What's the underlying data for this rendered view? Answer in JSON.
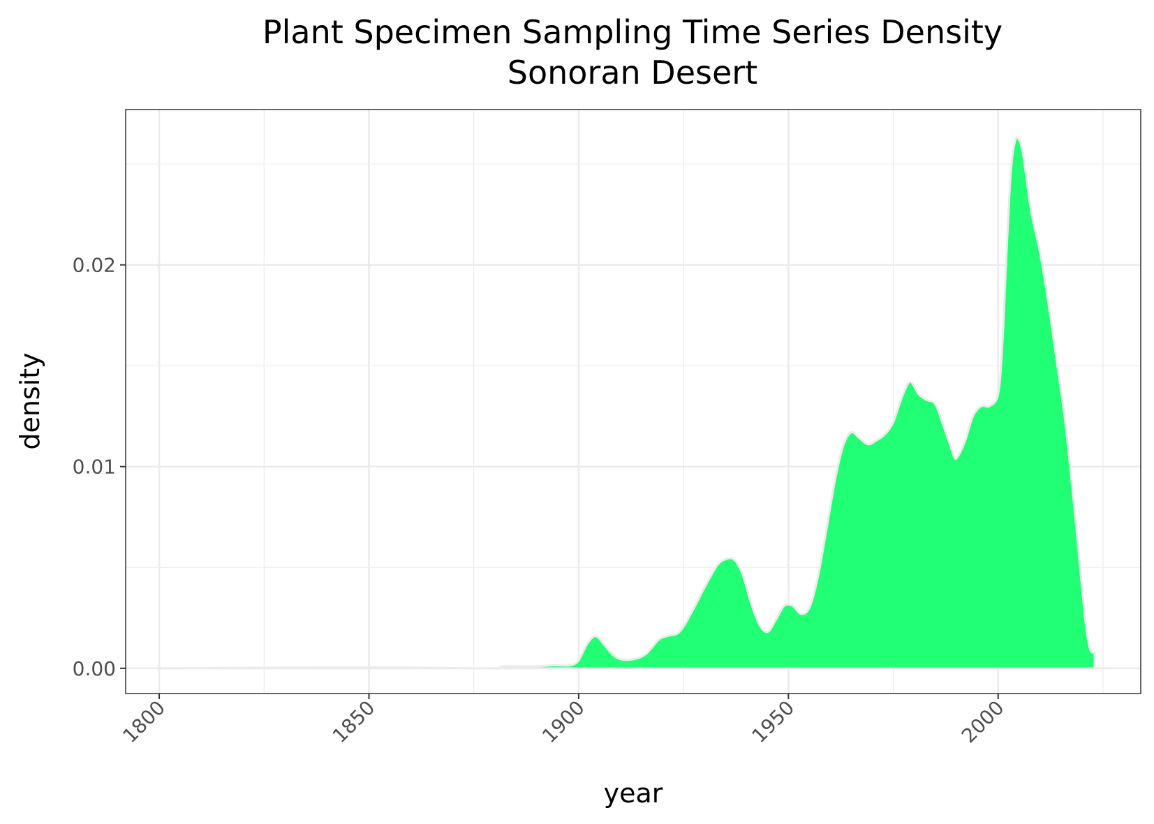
{
  "chart_data": {
    "type": "area",
    "title": "Plant Specimen Sampling Time Series Density",
    "subtitle": "Sonoran Desert",
    "xlabel": "year",
    "ylabel": "density",
    "xlim": [
      1792,
      2034
    ],
    "ylim": [
      -0.00125,
      0.0277
    ],
    "x_ticks": [
      1800,
      1850,
      1900,
      1950,
      2000
    ],
    "x_tick_labels": [
      "1800",
      "1850",
      "1900",
      "1950",
      "2000"
    ],
    "y_ticks": [
      0,
      0.01,
      0.02
    ],
    "y_tick_labels": [
      "0.00",
      "0.01",
      "0.02"
    ],
    "grid": true,
    "legend": "none",
    "colors": {
      "fill": "#21ff75",
      "outline": "#ebebeb",
      "grid": "#ebebeb",
      "border": "#333333"
    },
    "series": [
      {
        "x": [
          1800,
          1850,
          1878,
          1882,
          1886,
          1890,
          1894,
          1898,
          1900,
          1902,
          1904,
          1906,
          1908,
          1910,
          1913,
          1916,
          1919,
          1921,
          1924,
          1927,
          1930,
          1933,
          1935,
          1937,
          1939,
          1941,
          1943,
          1945,
          1947,
          1949,
          1951,
          1953,
          1955,
          1957,
          1959,
          1961,
          1963,
          1965,
          1967,
          1969,
          1971,
          1973,
          1975,
          1977,
          1979,
          1981,
          1983,
          1985,
          1987,
          1989,
          1990,
          1992,
          1994,
          1996,
          1998,
          2000,
          2001,
          2002,
          2003,
          2004,
          2005,
          2006,
          2007,
          2008,
          2010,
          2012,
          2014,
          2016,
          2018,
          2020,
          2021,
          2022,
          2023
        ],
        "y": [
          0.0,
          5e-05,
          0.0,
          0.0001,
          0.0001,
          0.0001,
          0.00015,
          0.00015,
          0.0004,
          0.0012,
          0.0016,
          0.0012,
          0.0007,
          0.00045,
          0.00045,
          0.0007,
          0.0014,
          0.0016,
          0.0018,
          0.0028,
          0.004,
          0.0051,
          0.0054,
          0.0054,
          0.0047,
          0.0033,
          0.0022,
          0.0018,
          0.0024,
          0.0031,
          0.0031,
          0.0027,
          0.003,
          0.0045,
          0.0068,
          0.0092,
          0.011,
          0.0117,
          0.0114,
          0.0111,
          0.0113,
          0.0116,
          0.0122,
          0.0134,
          0.0142,
          0.0136,
          0.0133,
          0.0131,
          0.012,
          0.0108,
          0.0104,
          0.0112,
          0.0125,
          0.013,
          0.013,
          0.0136,
          0.016,
          0.0205,
          0.0245,
          0.0261,
          0.0262,
          0.0254,
          0.0239,
          0.0225,
          0.0206,
          0.0181,
          0.0152,
          0.0122,
          0.0083,
          0.004,
          0.002,
          0.0009,
          0.0008
        ]
      }
    ]
  }
}
